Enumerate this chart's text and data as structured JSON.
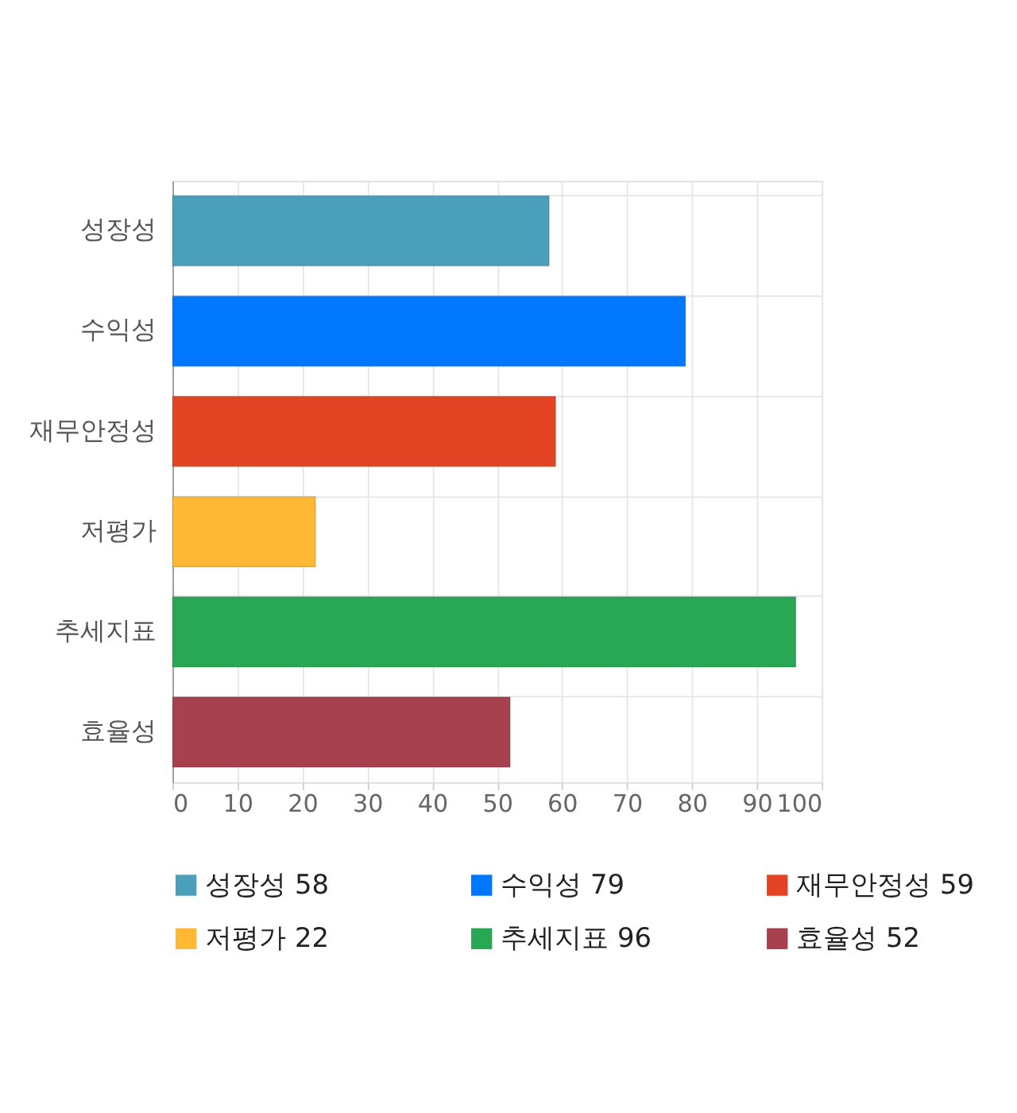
{
  "chart_data": {
    "type": "bar",
    "orientation": "horizontal",
    "categories": [
      "성장성",
      "수익성",
      "재무안정성",
      "저평가",
      "추세지표",
      "효율성"
    ],
    "series": [
      {
        "name": "성장성 58",
        "color": "#4aa0bb",
        "values": [
          58,
          null,
          null,
          null,
          null,
          null
        ]
      },
      {
        "name": "수익성 79",
        "color": "#0077ff",
        "values": [
          null,
          79,
          null,
          null,
          null,
          null
        ]
      },
      {
        "name": "재무안정성 59",
        "color": "#e34524",
        "values": [
          null,
          null,
          59,
          null,
          null,
          null
        ]
      },
      {
        "name": "저평가 22",
        "color": "#ffb833",
        "values": [
          null,
          null,
          null,
          22,
          null,
          null
        ]
      },
      {
        "name": "추세지표 96",
        "color": "#28a755",
        "values": [
          null,
          null,
          null,
          null,
          96,
          null
        ]
      },
      {
        "name": "효율성 52",
        "color": "#a8414f",
        "values": [
          null,
          null,
          null,
          null,
          null,
          52
        ]
      }
    ],
    "xlim": [
      0,
      100
    ],
    "xticks": [
      0,
      10,
      20,
      30,
      40,
      50,
      60,
      70,
      80,
      90,
      100
    ],
    "grid": true,
    "legend": "bottom"
  }
}
